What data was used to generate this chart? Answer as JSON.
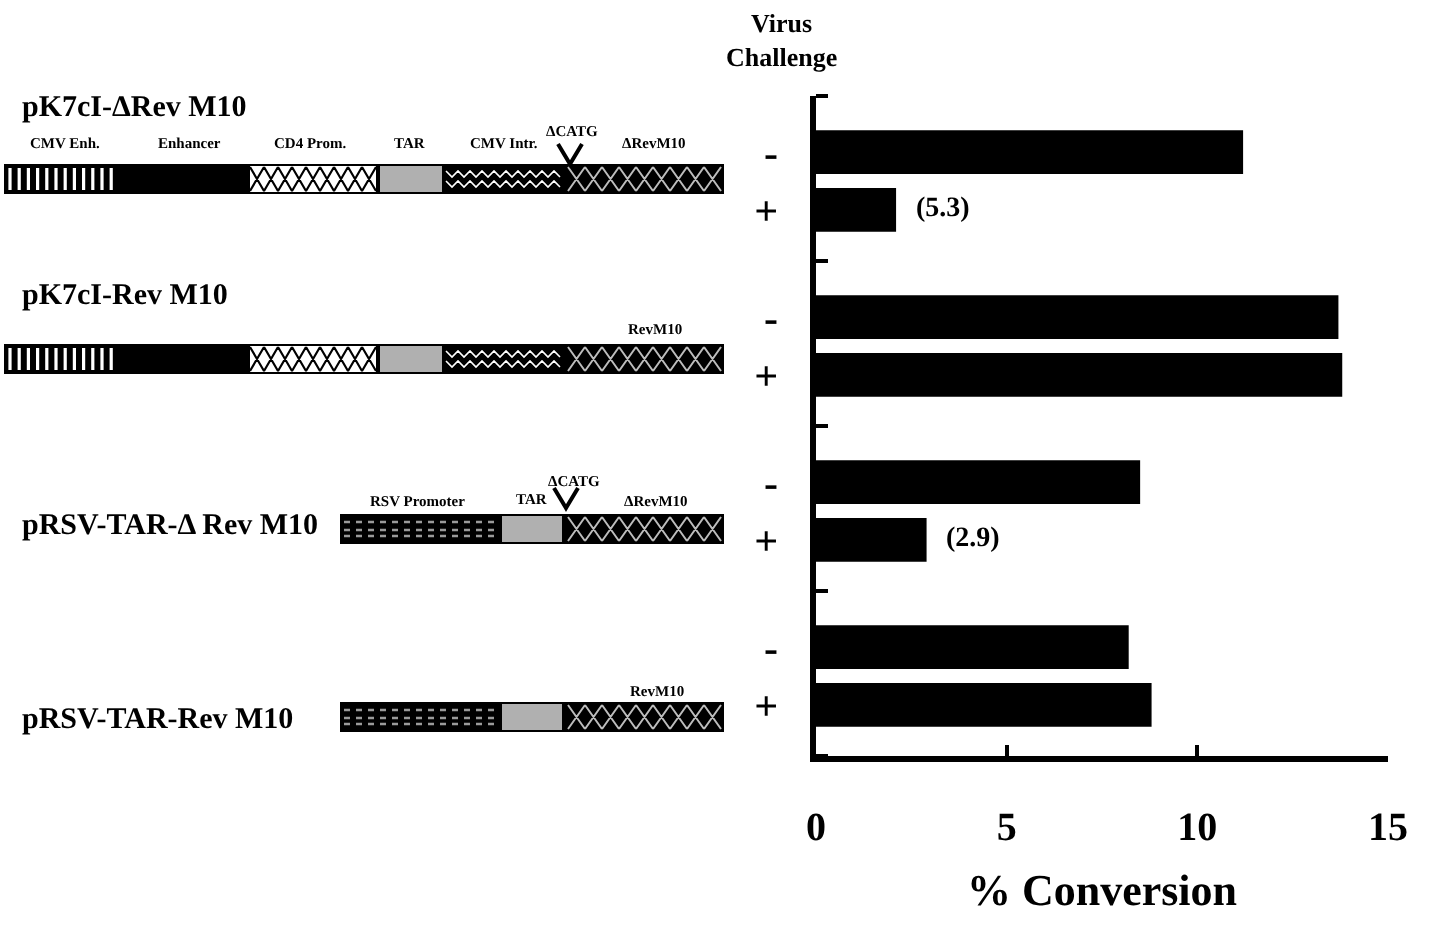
{
  "chart_data": {
    "type": "bar",
    "orientation": "horizontal",
    "ylabel": "Virus Challenge",
    "xlabel": "% Conversion",
    "categories": [
      "-",
      "+",
      "-",
      "+",
      "-",
      "+",
      "-",
      "+"
    ],
    "values": [
      11.2,
      2.1,
      13.7,
      13.8,
      8.5,
      2.9,
      8.2,
      8.8
    ],
    "color": "#000000",
    "xlim": [
      0,
      15
    ],
    "xticks": [
      0,
      5,
      10,
      15
    ],
    "annotations": [
      "(5.3)",
      "(2.9)",
      "pK7cI-ΔRev M10",
      "CMV Enh.",
      "Enhancer",
      "CD4 Prom.",
      "TAR",
      "CMV Intr.",
      "ΔCATG",
      "ΔRevM10",
      "pK7cI-Rev M10",
      "RevM10",
      "pRSV-TAR-Δ Rev M10",
      "RSV Promoter",
      "TAR",
      "ΔCATG",
      "ΔRevM10",
      "pRSV-TAR-Rev M10",
      "RevM10"
    ]
  }
}
